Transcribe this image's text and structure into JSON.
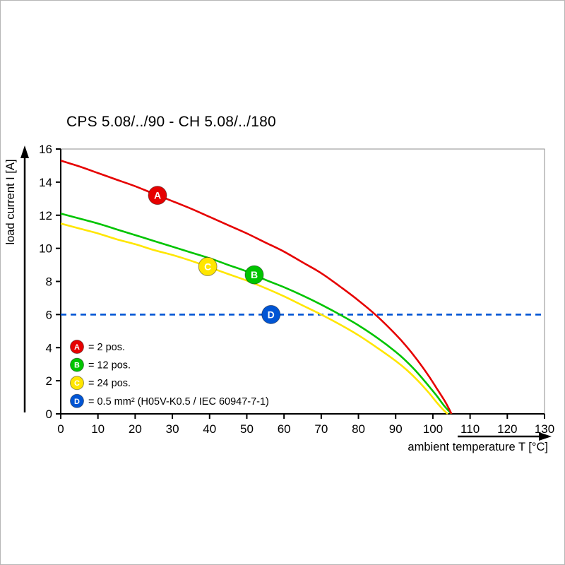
{
  "chart_data": {
    "type": "line",
    "title": "CPS 5.08/../90 - CH 5.08/../180",
    "xlabel": "ambient temperature T [°C]",
    "ylabel": "load current I [A]",
    "xlim": [
      0,
      130
    ],
    "ylim": [
      0,
      16
    ],
    "xticks": [
      0,
      10,
      20,
      30,
      40,
      50,
      60,
      70,
      80,
      90,
      100,
      110,
      120,
      130
    ],
    "yticks": [
      0,
      2,
      4,
      6,
      8,
      10,
      12,
      14,
      16
    ],
    "grid": false,
    "legend_position": "inside-bottom-left",
    "series": [
      {
        "id": "A",
        "legend_label": "= 2 pos.",
        "color": "#e60000",
        "style": "solid",
        "marker_at": [
          26,
          13.2
        ],
        "points": [
          [
            0,
            15.3
          ],
          [
            5,
            14.95
          ],
          [
            10,
            14.55
          ],
          [
            15,
            14.15
          ],
          [
            20,
            13.75
          ],
          [
            25,
            13.3
          ],
          [
            30,
            12.85
          ],
          [
            35,
            12.4
          ],
          [
            40,
            11.9
          ],
          [
            45,
            11.4
          ],
          [
            50,
            10.9
          ],
          [
            55,
            10.35
          ],
          [
            60,
            9.8
          ],
          [
            65,
            9.15
          ],
          [
            70,
            8.5
          ],
          [
            75,
            7.7
          ],
          [
            80,
            6.85
          ],
          [
            85,
            5.9
          ],
          [
            90,
            4.8
          ],
          [
            93,
            4.05
          ],
          [
            96,
            3.2
          ],
          [
            99,
            2.25
          ],
          [
            101,
            1.55
          ],
          [
            103,
            0.85
          ],
          [
            104,
            0.45
          ],
          [
            105,
            0
          ]
        ]
      },
      {
        "id": "B",
        "legend_label": "= 12 pos.",
        "color": "#00c400",
        "style": "solid",
        "marker_at": [
          52,
          8.4
        ],
        "points": [
          [
            0,
            12.1
          ],
          [
            5,
            11.8
          ],
          [
            10,
            11.5
          ],
          [
            15,
            11.15
          ],
          [
            20,
            10.8
          ],
          [
            25,
            10.45
          ],
          [
            30,
            10.1
          ],
          [
            35,
            9.75
          ],
          [
            40,
            9.4
          ],
          [
            45,
            9.0
          ],
          [
            50,
            8.6
          ],
          [
            55,
            8.1
          ],
          [
            60,
            7.65
          ],
          [
            65,
            7.15
          ],
          [
            70,
            6.6
          ],
          [
            75,
            6.0
          ],
          [
            80,
            5.35
          ],
          [
            85,
            4.6
          ],
          [
            90,
            3.75
          ],
          [
            93,
            3.15
          ],
          [
            96,
            2.45
          ],
          [
            99,
            1.65
          ],
          [
            101,
            1.1
          ],
          [
            103,
            0.5
          ],
          [
            105,
            0
          ]
        ]
      },
      {
        "id": "C",
        "legend_label": "= 24 pos.",
        "color": "#ffe600",
        "style": "solid",
        "marker_at": [
          39.5,
          8.9
        ],
        "points": [
          [
            0,
            11.5
          ],
          [
            5,
            11.2
          ],
          [
            10,
            10.9
          ],
          [
            15,
            10.55
          ],
          [
            20,
            10.25
          ],
          [
            25,
            9.9
          ],
          [
            30,
            9.6
          ],
          [
            35,
            9.25
          ],
          [
            40,
            8.85
          ],
          [
            45,
            8.45
          ],
          [
            50,
            8.05
          ],
          [
            55,
            7.6
          ],
          [
            60,
            7.1
          ],
          [
            65,
            6.55
          ],
          [
            70,
            6.0
          ],
          [
            75,
            5.4
          ],
          [
            80,
            4.75
          ],
          [
            85,
            4.0
          ],
          [
            90,
            3.2
          ],
          [
            93,
            2.65
          ],
          [
            96,
            2.0
          ],
          [
            99,
            1.25
          ],
          [
            101,
            0.7
          ],
          [
            103,
            0.2
          ],
          [
            104,
            0
          ]
        ]
      },
      {
        "id": "D",
        "legend_label": "= 0.5 mm² (H05V-K0.5 / IEC 60947-7-1)",
        "color": "#0055d4",
        "style": "dashed",
        "marker_at": [
          56.5,
          6
        ],
        "points": [
          [
            0,
            6
          ],
          [
            130,
            6
          ]
        ]
      }
    ]
  }
}
